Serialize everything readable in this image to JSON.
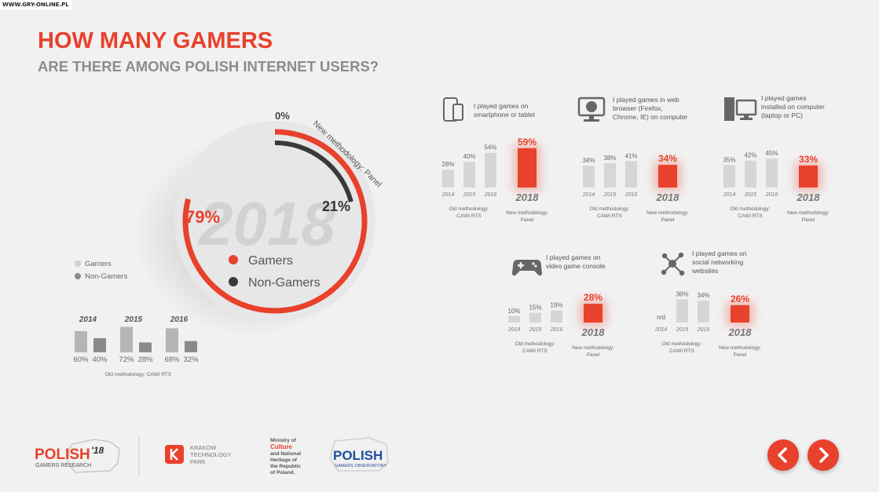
{
  "watermark": "WWW.GRY-ONLINE.PL",
  "header": {
    "title": "HOW MANY GAMERS",
    "subtitle": "ARE THERE AMONG POLISH INTERNET USERS?"
  },
  "colors": {
    "accent": "#e8412c",
    "dark": "#3a3a3a",
    "gray": "#b5b5b5",
    "darkgray": "#8a8a8a"
  },
  "donut": {
    "year": "2018",
    "gamers_pct": "79%",
    "nongamers_pct": "21%",
    "zero_label": "0%",
    "panel_label": "New methodology: Panel",
    "gamers_value": 79,
    "nongamers_value": 21,
    "legend": {
      "gamers": "Gamers",
      "nongamers": "Non-Gamers"
    }
  },
  "old_chart": {
    "legend": {
      "gamers": "Gamers",
      "nongamers": "Non-Gamers"
    },
    "methodology": "Old methodology: CAWI RTS",
    "groups": [
      {
        "year": "2014",
        "gamers": "60%",
        "nongamers": "40%"
      },
      {
        "year": "2015",
        "gamers": "72%",
        "nongamers": "28%"
      },
      {
        "year": "2016",
        "gamers": "68%",
        "nongamers": "32%"
      }
    ]
  },
  "platforms": [
    {
      "id": "mobile",
      "icon": "smartphone-tablet-icon",
      "title": [
        "I played games on",
        "smartphone or tablet"
      ],
      "old": [
        {
          "year": "2014",
          "label": "28%",
          "value": 28
        },
        {
          "year": "2015",
          "label": "40%",
          "value": 40
        },
        {
          "year": "2016",
          "label": "54%",
          "value": 54
        }
      ],
      "new": {
        "year": "2018",
        "label": "59%",
        "value": 59
      }
    },
    {
      "id": "browser",
      "icon": "web-browser-icon",
      "title": [
        "I played games in web",
        "browser (Firefox,",
        "Chrome, IE) on computer"
      ],
      "old": [
        {
          "year": "2014",
          "label": "34%",
          "value": 34
        },
        {
          "year": "2015",
          "label": "38%",
          "value": 38
        },
        {
          "year": "2016",
          "label": "41%",
          "value": 41
        }
      ],
      "new": {
        "year": "2018",
        "label": "34%",
        "value": 34
      }
    },
    {
      "id": "computer",
      "icon": "desktop-computer-icon",
      "title": [
        "I played games",
        "installed on computer",
        "(laptop or PC)"
      ],
      "old": [
        {
          "year": "2014",
          "label": "35%",
          "value": 35
        },
        {
          "year": "2015",
          "label": "42%",
          "value": 42
        },
        {
          "year": "2016",
          "label": "45%",
          "value": 45
        }
      ],
      "new": {
        "year": "2018",
        "label": "33%",
        "value": 33
      }
    },
    {
      "id": "console",
      "icon": "gamepad-icon",
      "title": [
        "I played games on",
        "video game console"
      ],
      "old": [
        {
          "year": "2014",
          "label": "10%",
          "value": 10
        },
        {
          "year": "2015",
          "label": "15%",
          "value": 15
        },
        {
          "year": "2016",
          "label": "19%",
          "value": 19
        }
      ],
      "new": {
        "year": "2018",
        "label": "28%",
        "value": 28
      }
    },
    {
      "id": "social",
      "icon": "social-network-icon",
      "title": [
        "I played games on",
        "social networking",
        "websites"
      ],
      "old": [
        {
          "year": "2014",
          "label": "n/d",
          "value": 0
        },
        {
          "year": "2015",
          "label": "36%",
          "value": 36
        },
        {
          "year": "2016",
          "label": "34%",
          "value": 34
        }
      ],
      "new": {
        "year": "2018",
        "label": "26%",
        "value": 26
      }
    }
  ],
  "platform_labels": {
    "old": [
      "Old methodology:",
      "CAWI RTS"
    ],
    "new": [
      "New methodology:",
      "Panel"
    ]
  },
  "footer": {
    "polish_logo": "POLISH",
    "polish_logo_num": "'18",
    "polish_logo_sub": "GAMERS RESEARCH",
    "ktp": [
      "KRAKOW",
      "TECHNOLOGY",
      "PARK"
    ],
    "ministry": [
      "Ministry of",
      "Culture",
      "and National",
      "Heritage of",
      "the Republic",
      "of Poland."
    ],
    "pgo": "POLISH",
    "pgo_sub": "GAMERS OBSERVATORY"
  },
  "chart_data": [
    {
      "type": "pie",
      "title": "",
      "categories": [
        "Gamers",
        "Non-Gamers"
      ],
      "values": [
        79,
        21
      ],
      "label": "2018 New methodology: Panel"
    },
    {
      "type": "bar",
      "title": "",
      "categories": [
        "2014",
        "2015",
        "2016"
      ],
      "series": [
        {
          "name": "Gamers",
          "values": [
            60,
            72,
            68
          ]
        },
        {
          "name": "Non-Gamers",
          "values": [
            40,
            28,
            32
          ]
        }
      ]
    },
    {
      "type": "bar",
      "title": "I played games on smartphone or tablet",
      "categories": [
        "2014",
        "2015",
        "2016",
        "2018"
      ],
      "values": [
        28,
        40,
        54,
        59
      ]
    },
    {
      "type": "bar",
      "title": "I played games in web browser (Firefox, Chrome, IE) on computer",
      "categories": [
        "2014",
        "2015",
        "2016",
        "2018"
      ],
      "values": [
        34,
        38,
        41,
        34
      ]
    },
    {
      "type": "bar",
      "title": "I played games installed on computer (laptop or PC)",
      "categories": [
        "2014",
        "2015",
        "2016",
        "2018"
      ],
      "values": [
        35,
        42,
        45,
        33
      ]
    },
    {
      "type": "bar",
      "title": "I played games on video game console",
      "categories": [
        "2014",
        "2015",
        "2016",
        "2018"
      ],
      "values": [
        10,
        15,
        19,
        28
      ]
    },
    {
      "type": "bar",
      "title": "I played games on social networking websites",
      "categories": [
        "2014",
        "2015",
        "2016",
        "2018"
      ],
      "values": [
        null,
        36,
        34,
        26
      ]
    }
  ]
}
